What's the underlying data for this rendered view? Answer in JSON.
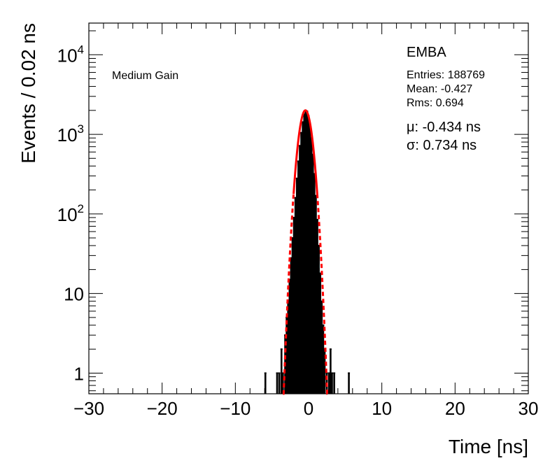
{
  "chart_data": {
    "type": "histogram",
    "xlabel": "Time [ns]",
    "ylabel": "Events / 0.02 ns",
    "xlim": [
      -30,
      30
    ],
    "ylim": [
      0.55,
      25000
    ],
    "yscale": "log",
    "grid": false,
    "x_ticks": [
      {
        "value": -30,
        "label": "−30"
      },
      {
        "value": -20,
        "label": "−20"
      },
      {
        "value": -10,
        "label": "−10"
      },
      {
        "value": 0,
        "label": "0"
      },
      {
        "value": 10,
        "label": "10"
      },
      {
        "value": 20,
        "label": "20"
      },
      {
        "value": 30,
        "label": "30"
      }
    ],
    "y_ticks": [
      {
        "value": 1,
        "base": "1",
        "exp": ""
      },
      {
        "value": 10,
        "base": "10",
        "exp": ""
      },
      {
        "value": 100,
        "base": "10",
        "exp": "2"
      },
      {
        "value": 1000,
        "base": "10",
        "exp": "3"
      },
      {
        "value": 10000,
        "base": "10",
        "exp": "4"
      }
    ],
    "annotations": {
      "label": "Medium Gain",
      "partition": "EMBA",
      "entries": "Entries: 188769",
      "mean": "Mean: -0.427",
      "rms": "Rms: 0.694",
      "mu": "μ: -0.434 ns",
      "sigma": "σ: 0.734 ns"
    },
    "series": [
      {
        "kind": "histogram",
        "color": "#000000",
        "bins": [
          [
            -5.9,
            1
          ],
          [
            -4.3,
            1
          ],
          [
            -4.0,
            1
          ],
          [
            -3.7,
            2
          ],
          [
            -3.5,
            1
          ],
          [
            -3.2,
            3
          ],
          [
            -3.0,
            5
          ],
          [
            -2.8,
            8
          ],
          [
            -2.6,
            15
          ],
          [
            -2.4,
            28
          ],
          [
            -2.2,
            50
          ],
          [
            -2.0,
            90
          ],
          [
            -1.8,
            160
          ],
          [
            -1.6,
            280
          ],
          [
            -1.4,
            460
          ],
          [
            -1.2,
            720
          ],
          [
            -1.0,
            1050
          ],
          [
            -0.8,
            1430
          ],
          [
            -0.6,
            1800
          ],
          [
            -0.4,
            2000
          ],
          [
            -0.2,
            1950
          ],
          [
            0.0,
            1700
          ],
          [
            0.2,
            1300
          ],
          [
            0.4,
            900
          ],
          [
            0.6,
            560
          ],
          [
            0.8,
            320
          ],
          [
            1.0,
            170
          ],
          [
            1.2,
            85
          ],
          [
            1.4,
            40
          ],
          [
            1.6,
            18
          ],
          [
            1.8,
            8
          ],
          [
            2.0,
            4
          ],
          [
            2.2,
            2
          ],
          [
            2.5,
            1
          ],
          [
            2.8,
            1
          ],
          [
            3.0,
            2
          ],
          [
            3.2,
            1
          ],
          [
            3.5,
            1
          ],
          [
            5.5,
            1
          ]
        ]
      },
      {
        "kind": "gaussian-fit",
        "color": "#ff0000",
        "amplitude": 2000,
        "mu": -0.434,
        "sigma": 0.734,
        "range": [
          -3.5,
          2.7
        ]
      }
    ]
  }
}
